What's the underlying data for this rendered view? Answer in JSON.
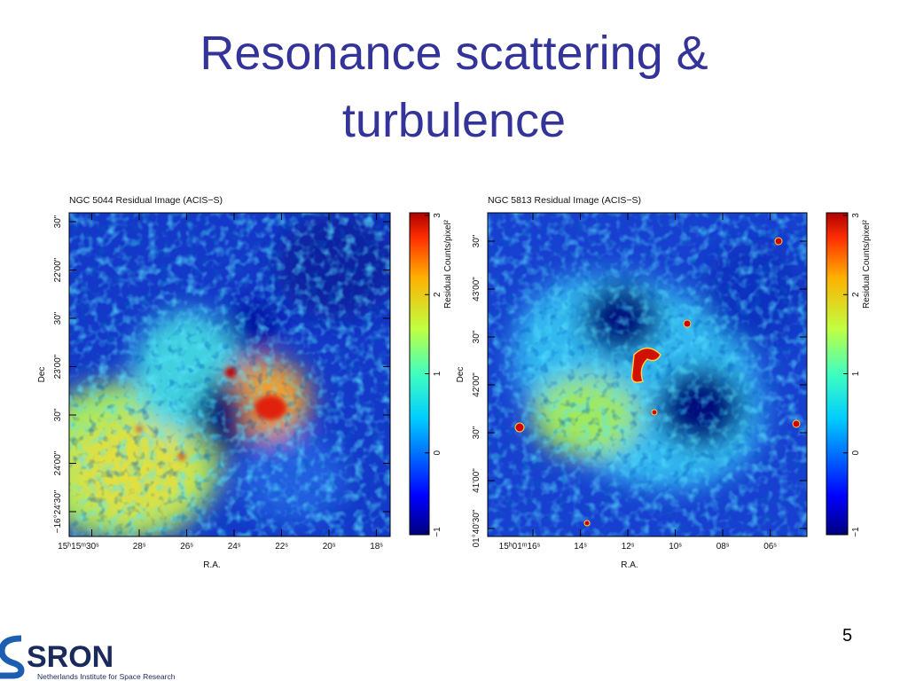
{
  "title": "Resonance scattering & turbulence",
  "figures": [
    {
      "title": "NGC 5044 Residual Image (ACIS−S)",
      "x_label": "R.A.",
      "y_label": "Dec",
      "x_ticks": [
        "15ʰ15ᵐ30ˢ",
        "28ˢ",
        "26ˢ",
        "24ˢ",
        "22ˢ",
        "20ˢ",
        "18ˢ"
      ],
      "y_ticks": [
        "30\"",
        "22'00\"",
        "30\"",
        "23'00\"",
        "30\"",
        "24'00\"",
        "−16°24'30\""
      ],
      "colorbar_label": "Residual Counts/pixel²",
      "colorbar_ticks": [
        "3",
        "2",
        "1",
        "0",
        "−1"
      ]
    },
    {
      "title": "NGC 5813 Residual Image (ACIS−S)",
      "x_label": "R.A.",
      "y_label": "Dec",
      "x_ticks": [
        "15ʰ01ᵐ16ˢ",
        "14ˢ",
        "12ˢ",
        "10ˢ",
        "08ˢ",
        "06ˢ"
      ],
      "y_ticks": [
        "30\"",
        "43'00\"",
        "30\"",
        "42'00\"",
        "30\"",
        "41'00\"",
        "01°40'30\""
      ],
      "colorbar_label": "Residual Counts/pixel²",
      "colorbar_ticks": [
        "3",
        "2",
        "1",
        "0",
        "−1"
      ]
    }
  ],
  "page_number": "5",
  "logo": {
    "name": "SRON",
    "subtitle": "Netherlands Institute for Space Research"
  }
}
